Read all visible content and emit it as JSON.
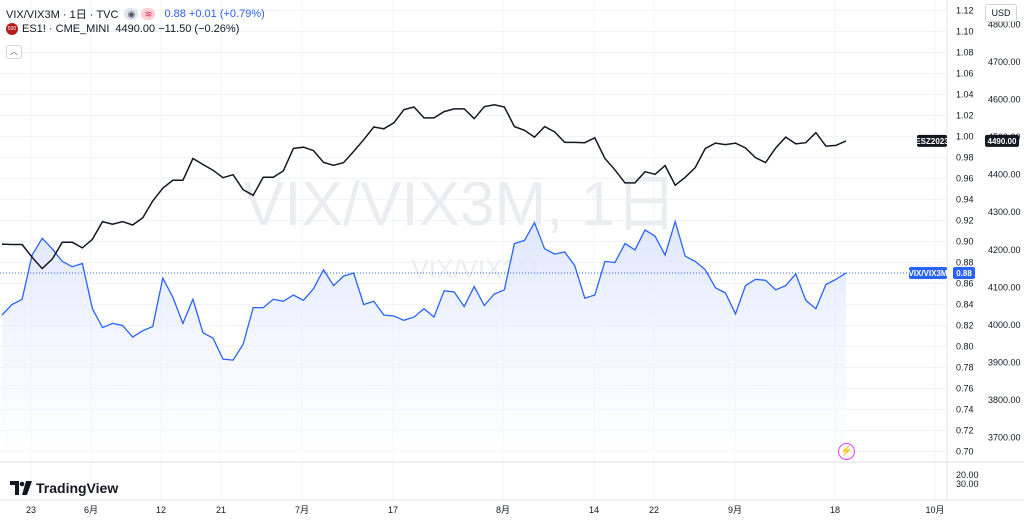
{
  "legend": {
    "main_symbol": "VIX/VIX3M · 1日 · TVC",
    "main_value": "0.88 +0.01 (+0.79%)",
    "compare_symbol": "ES1! · CME_MINI",
    "compare_value": "4490.00 −11.50 (−0.26%)",
    "compare_icon_text": "500"
  },
  "currency_button": "USD",
  "branding": "TradingView",
  "watermark": {
    "big": "VIX/VIX3M, 1日",
    "small": "VIX/VIX3M"
  },
  "colors": {
    "main_series": "#2962ff",
    "compare_series": "#131722",
    "main_fill_top": "#dbe4fd",
    "main_fill_bottom": "#ffffff",
    "last_price_line": "#2962ff",
    "grid": "#f0f3fa"
  },
  "icons": [
    "eye-icon",
    "wave-icon",
    "collapse-icon",
    "flash-icon",
    "tradingview-logo-icon"
  ],
  "chart_data": {
    "type": "line",
    "grid": true,
    "x_tick_labels": [
      "23",
      "6月",
      "12",
      "21",
      "7月",
      "17",
      "8月",
      "14",
      "22",
      "9月",
      "18",
      "10月"
    ],
    "left_axis": {
      "label": "VIX/VIX3M",
      "range": [
        0.69,
        1.13
      ],
      "ticks": [
        1.12,
        1.1,
        1.08,
        1.06,
        1.04,
        1.02,
        1.0,
        0.98,
        0.96,
        0.94,
        0.92,
        0.9,
        0.88,
        0.86,
        0.84,
        0.82,
        0.8,
        0.78,
        0.76,
        0.74,
        0.72,
        0.7
      ]
    },
    "right_axis": {
      "label": "ES1!",
      "range": [
        3635,
        4865
      ],
      "ticks": [
        4800,
        4700,
        4600,
        4500,
        4400,
        4300,
        4200,
        4100,
        4000,
        3900,
        3800,
        3700
      ],
      "tick_labels": [
        "4800.00",
        "4700.00",
        "4600.00",
        "4500.00",
        "4400.00",
        "4300.00",
        "4200.00",
        "4100.00",
        "4000.00",
        "3900.00",
        "3800.00",
        "3700.00"
      ]
    },
    "lower_pane_tick_labels": [
      "20.00",
      "30.00"
    ],
    "series": [
      {
        "name": "VIX/VIX3M",
        "axis": "left",
        "last_label": "0.88",
        "values": [
          0.83,
          0.84,
          0.845,
          0.887,
          0.903,
          0.893,
          0.881,
          0.876,
          0.879,
          0.836,
          0.818,
          0.822,
          0.82,
          0.809,
          0.815,
          0.819,
          0.865,
          0.847,
          0.822,
          0.845,
          0.813,
          0.808,
          0.788,
          0.787,
          0.802,
          0.837,
          0.837,
          0.845,
          0.843,
          0.849,
          0.844,
          0.855,
          0.873,
          0.858,
          0.867,
          0.87,
          0.84,
          0.843,
          0.83,
          0.829,
          0.825,
          0.828,
          0.836,
          0.828,
          0.853,
          0.852,
          0.838,
          0.857,
          0.839,
          0.85,
          0.854,
          0.898,
          0.901,
          0.918,
          0.893,
          0.888,
          0.89,
          0.877,
          0.846,
          0.849,
          0.881,
          0.88,
          0.898,
          0.892,
          0.911,
          0.905,
          0.887,
          0.919,
          0.886,
          0.881,
          0.873,
          0.856,
          0.851,
          0.831,
          0.858,
          0.864,
          0.863,
          0.854,
          0.858,
          0.869,
          0.844,
          0.836,
          0.859,
          0.864,
          0.87
        ]
      },
      {
        "name": "ES1!",
        "axis": "right",
        "last_label": "4490.00",
        "tag": "ESZ2023",
        "values": [
          4215,
          4214,
          4214,
          4180,
          4150,
          4175,
          4220,
          4220,
          4205,
          4228,
          4275,
          4268,
          4275,
          4266,
          4285,
          4330,
          4364,
          4385,
          4385,
          4443,
          4427,
          4412,
          4392,
          4400,
          4360,
          4345,
          4393,
          4393,
          4410,
          4470,
          4473,
          4464,
          4433,
          4425,
          4432,
          4462,
          4493,
          4527,
          4522,
          4538,
          4573,
          4580,
          4551,
          4551,
          4568,
          4575,
          4575,
          4549,
          4581,
          4586,
          4580,
          4528,
          4518,
          4500,
          4528,
          4514,
          4486,
          4486,
          4485,
          4498,
          4443,
          4413,
          4378,
          4378,
          4408,
          4401,
          4424,
          4372,
          4393,
          4419,
          4470,
          4484,
          4480,
          4484,
          4471,
          4445,
          4432,
          4471,
          4500,
          4482,
          4485,
          4512,
          4476,
          4478,
          4490
        ]
      }
    ]
  }
}
